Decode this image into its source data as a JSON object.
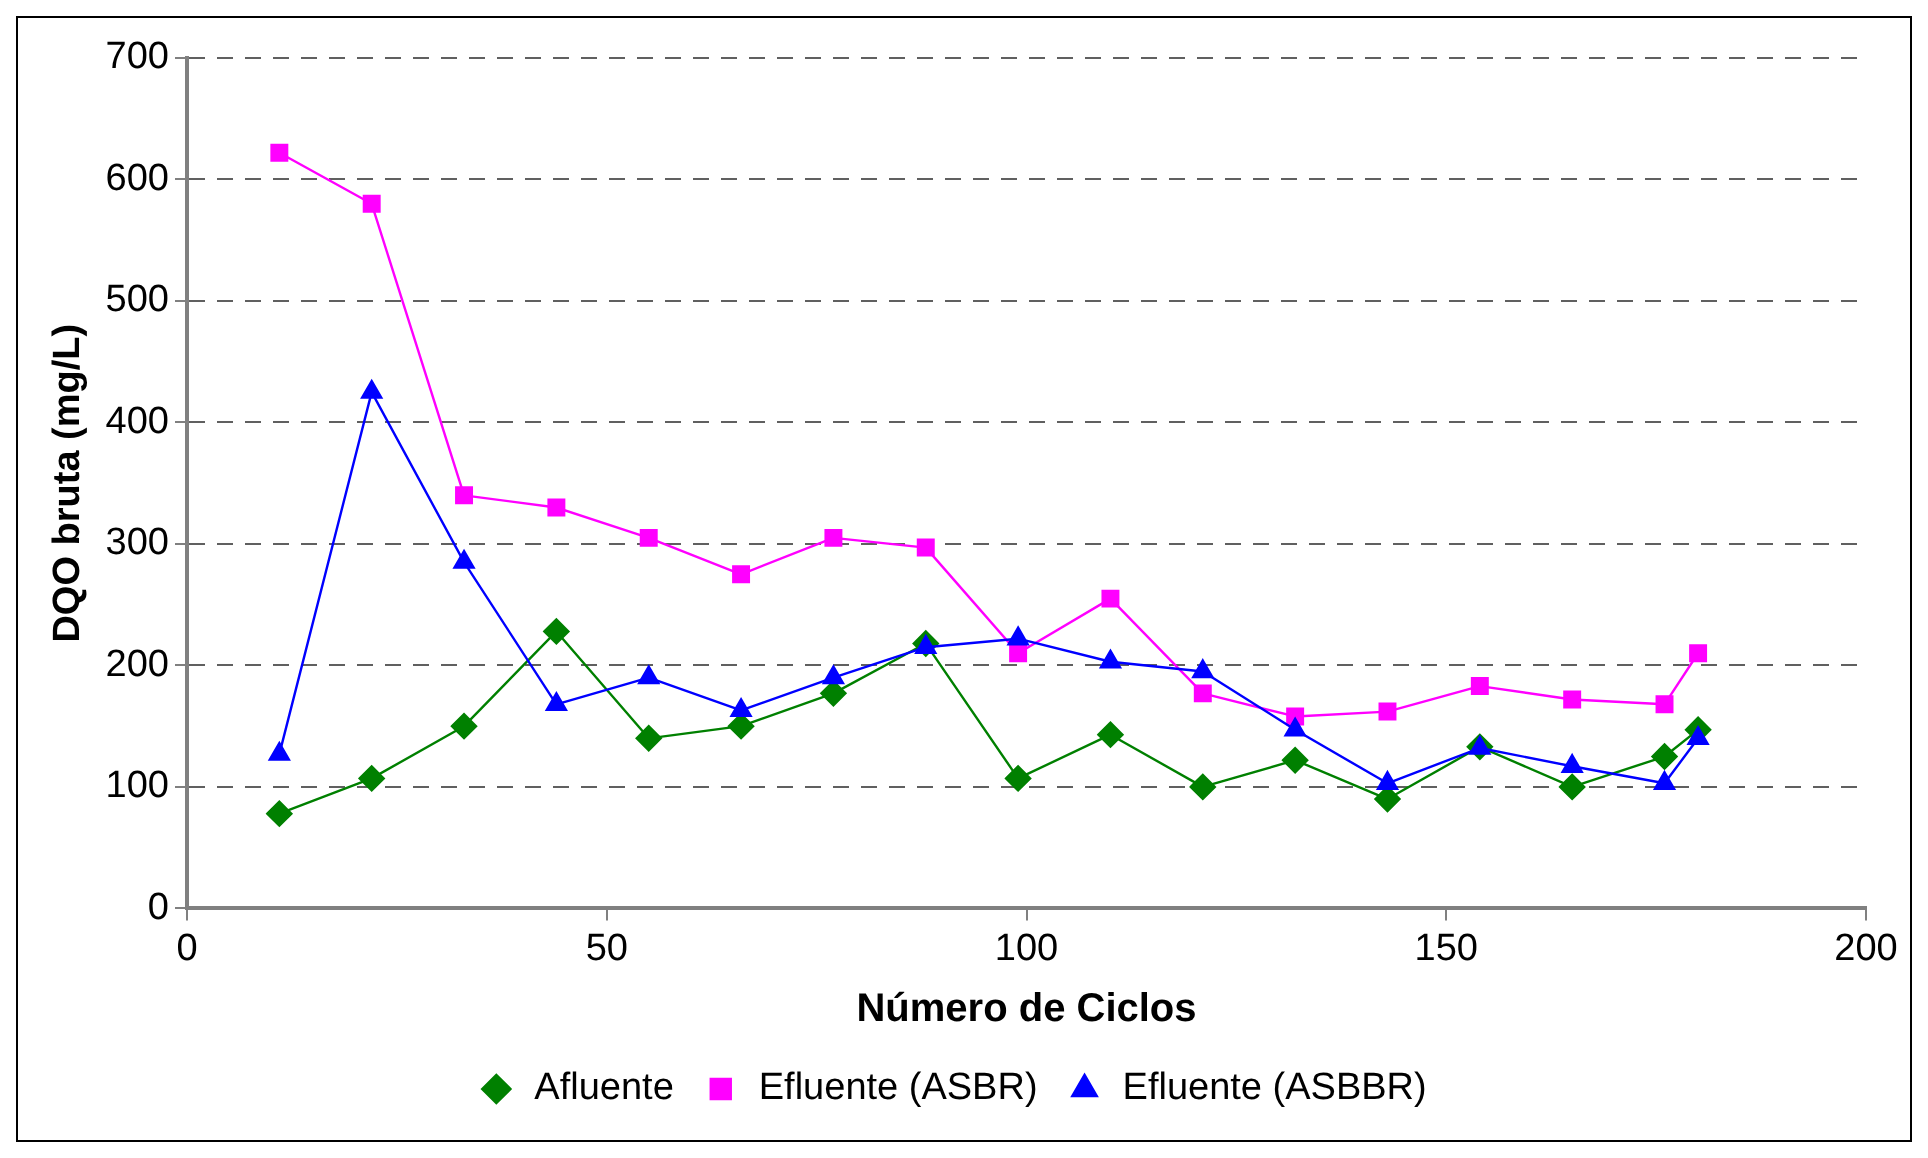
{
  "chart_data": {
    "type": "line",
    "xlabel": "Número de Ciclos",
    "ylabel": "DQO bruta (mg/L)",
    "x": [
      11,
      22,
      33,
      44,
      55,
      66,
      77,
      88,
      99,
      110,
      121,
      132,
      143,
      154,
      165,
      176,
      180
    ],
    "series": [
      {
        "name": "Afluente",
        "color": "#008000",
        "marker": "diamond",
        "values": [
          78,
          107,
          150,
          228,
          140,
          150,
          177,
          218,
          107,
          143,
          100,
          122,
          90,
          133,
          100,
          125,
          147
        ]
      },
      {
        "name": "Efluente (ASBR)",
        "color": "#ff00ff",
        "marker": "square",
        "values": [
          622,
          580,
          340,
          330,
          305,
          275,
          305,
          297,
          210,
          255,
          177,
          158,
          162,
          183,
          172,
          168,
          210
        ]
      },
      {
        "name": "Efluente (ASBBR)",
        "color": "#0000ff",
        "marker": "triangle",
        "values": [
          127,
          425,
          285,
          168,
          190,
          163,
          190,
          215,
          222,
          203,
          195,
          147,
          103,
          132,
          117,
          103,
          140
        ]
      }
    ],
    "xlim": [
      0,
      200
    ],
    "xticks": [
      0,
      50,
      100,
      150,
      200
    ],
    "ylim": [
      0,
      700
    ],
    "yticks": [
      0,
      100,
      200,
      300,
      400,
      500,
      600,
      700
    ],
    "grid": "y",
    "legend": "bottom",
    "line_style": "solid"
  }
}
